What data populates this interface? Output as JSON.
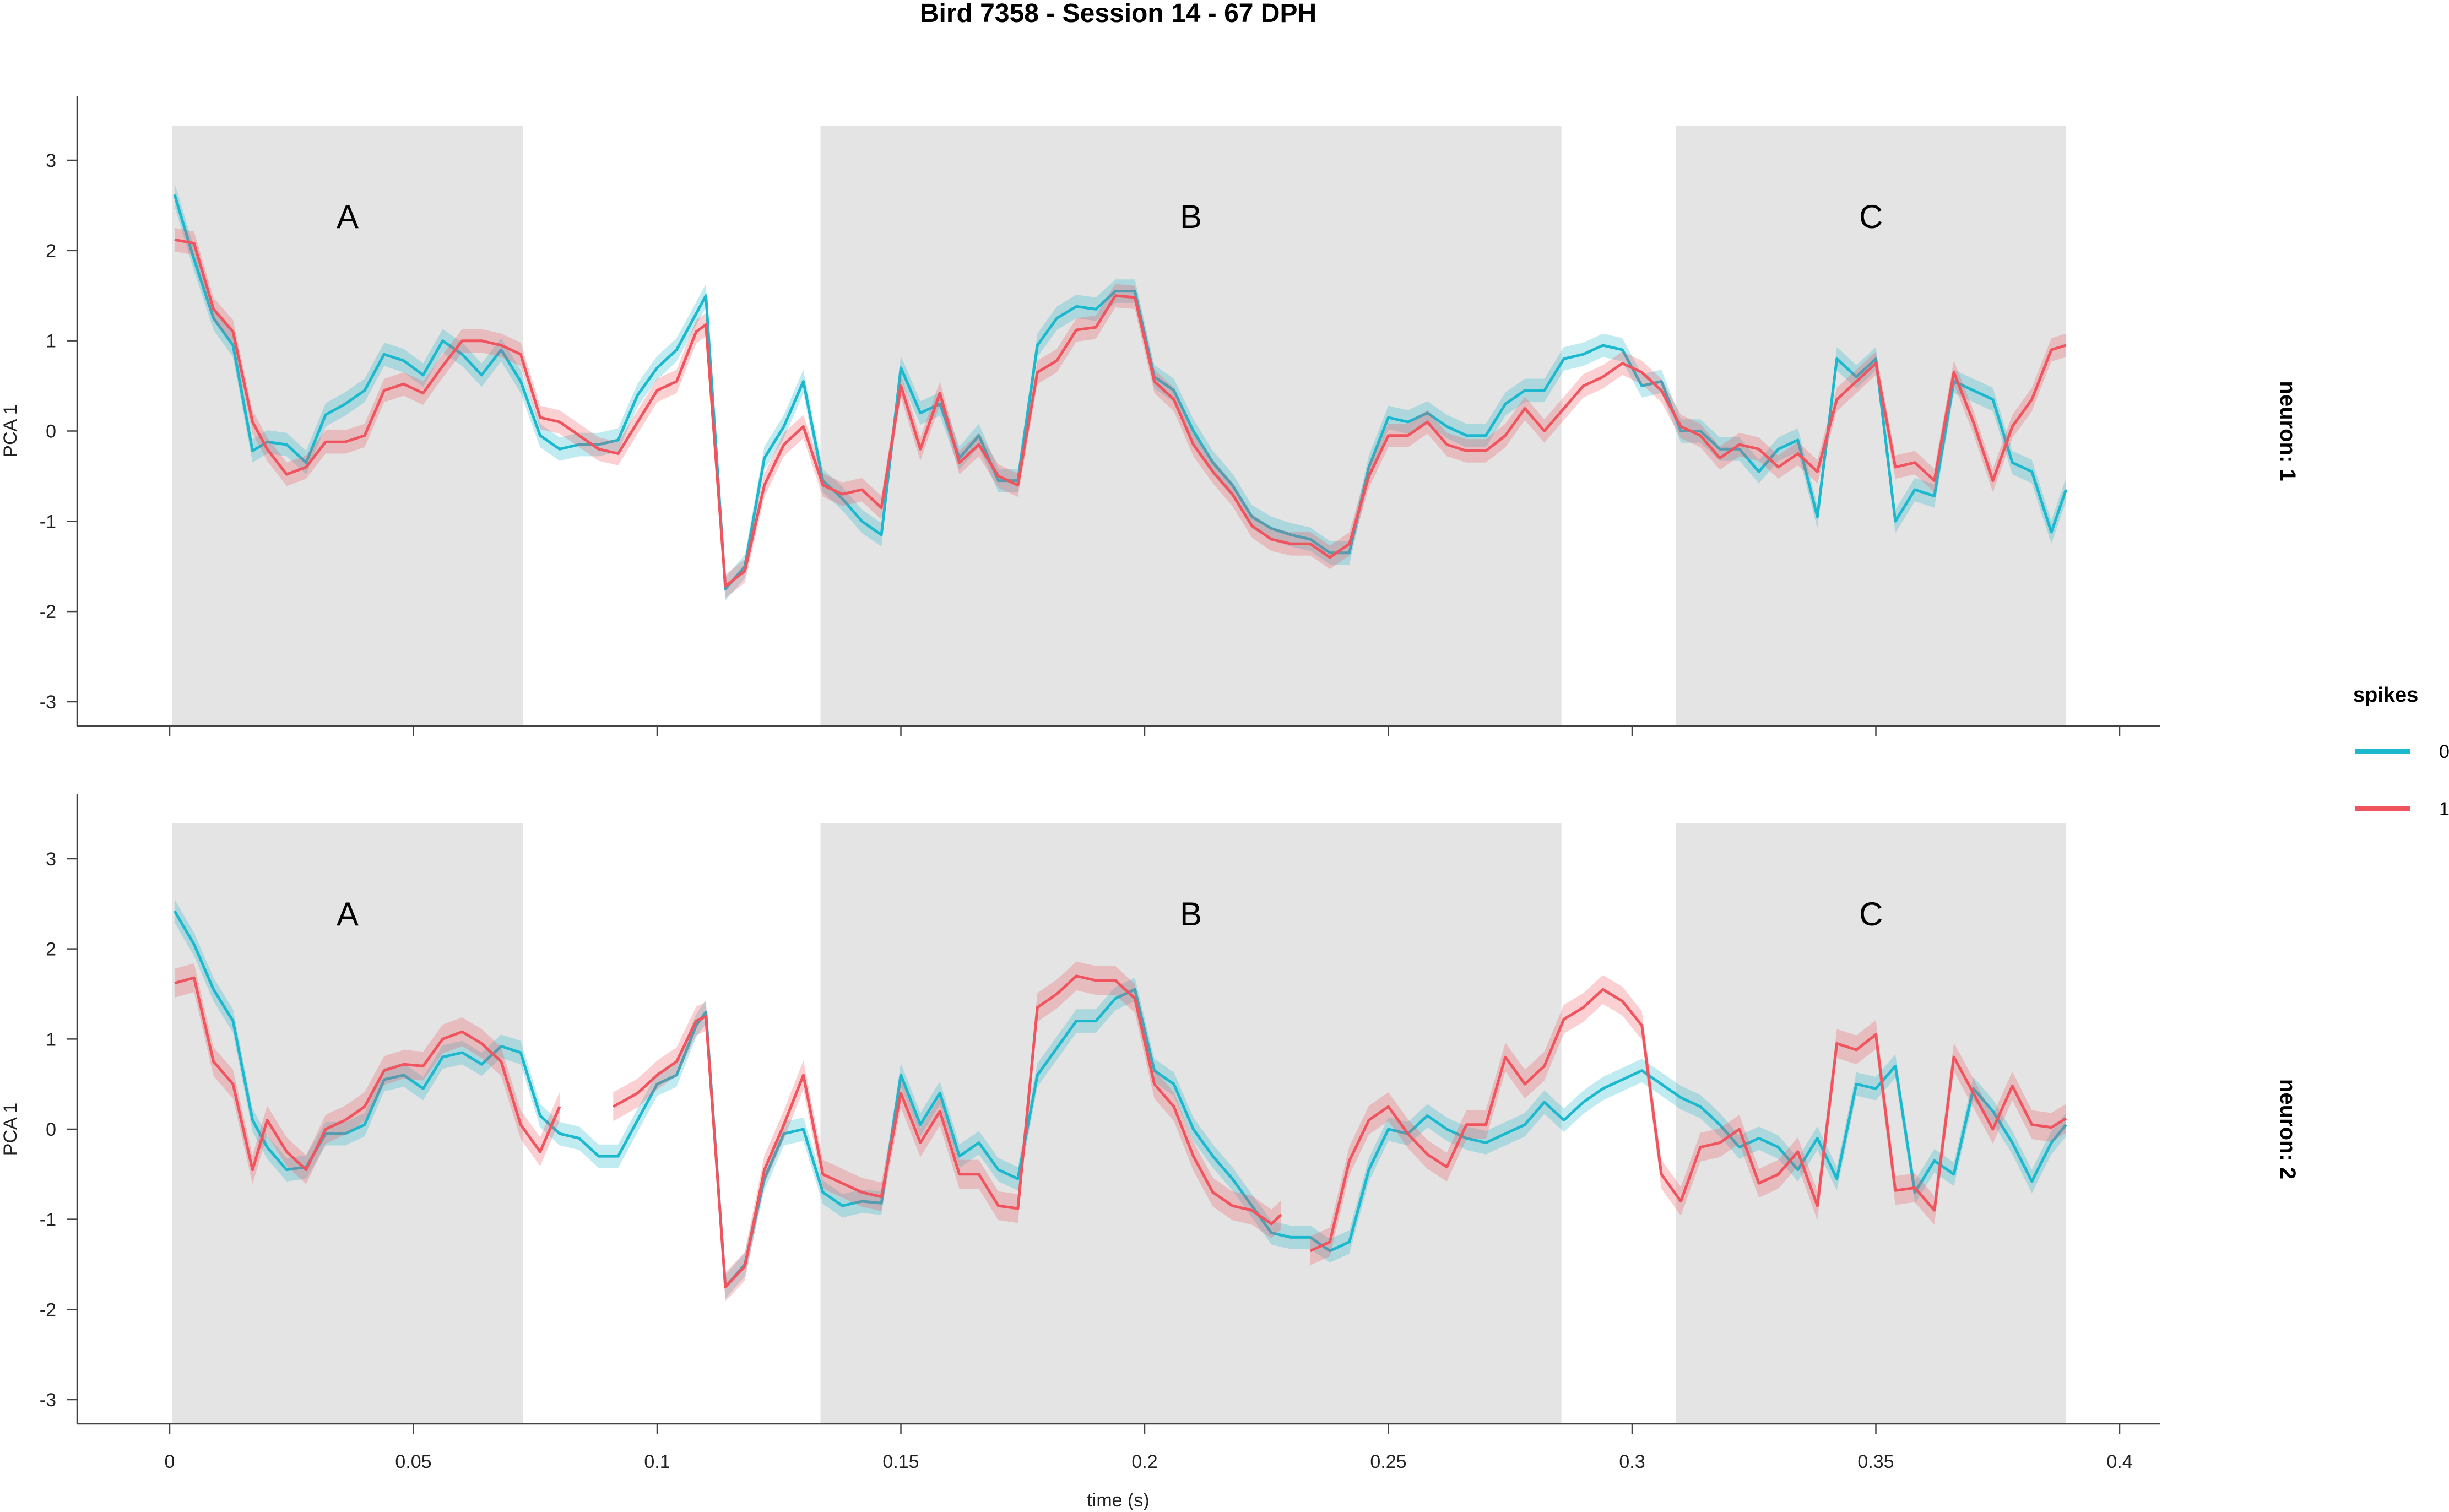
{
  "chart_data": {
    "type": "line",
    "title": "Bird 7358 - Session 14 - 67 DPH",
    "xlabel": "time (s)",
    "ylabel": "PCA 1",
    "xlim": [
      -0.009,
      0.41
    ],
    "ylim": [
      -3.3,
      3.7
    ],
    "x_ticks": [
      0,
      0.05,
      0.1,
      0.15,
      0.2,
      0.25,
      0.3,
      0.35,
      0.4
    ],
    "x_tick_labels": [
      "0",
      "0.05",
      "0.1",
      "0.15",
      "0.2",
      "0.25",
      "0.3",
      "0.35",
      "0.4"
    ],
    "y_ticks": [
      3,
      2,
      1,
      0,
      -1,
      -2,
      -3
    ],
    "y_tick_labels": [
      "3",
      "2",
      "1",
      "0",
      "-1",
      "-2",
      "-3"
    ],
    "regions": [
      {
        "label": "A",
        "start": 0.0005,
        "end": 0.0725
      },
      {
        "label": "B",
        "start": 0.1335,
        "end": 0.2855
      },
      {
        "label": "C",
        "start": 0.309,
        "end": 0.389
      }
    ],
    "legend": {
      "title": "spikes",
      "position": "right",
      "entries": [
        {
          "label": "0",
          "color": "#1CB8CE"
        },
        {
          "label": "1",
          "color": "#F0555F"
        }
      ]
    },
    "facets": [
      {
        "label": "neuron: 1",
        "series": [
          {
            "name": "0",
            "color": "#1CB8CE",
            "band": 0.13,
            "x": [
              0.001,
              0.005,
              0.009,
              0.013,
              0.017,
              0.02,
              0.024,
              0.028,
              0.032,
              0.036,
              0.04,
              0.044,
              0.048,
              0.052,
              0.056,
              0.06,
              0.064,
              0.068,
              0.072,
              0.076,
              0.08,
              0.084,
              0.088,
              0.092,
              0.096,
              0.1,
              0.104,
              0.108,
              0.11,
              0.114,
              0.118,
              0.122,
              0.126,
              0.13,
              0.134,
              0.138,
              0.142,
              0.146,
              0.15,
              0.154,
              0.158,
              0.162,
              0.166,
              0.17,
              0.174,
              0.178,
              0.182,
              0.186,
              0.19,
              0.194,
              0.198,
              0.202,
              0.206,
              0.21,
              0.214,
              0.218,
              0.222,
              0.226,
              0.23,
              0.234,
              0.238,
              0.242,
              0.246,
              0.25,
              0.254,
              0.258,
              0.262,
              0.266,
              0.27,
              0.274,
              0.278,
              0.282,
              0.286,
              0.29,
              0.294,
              0.298,
              0.302,
              0.306,
              0.31,
              0.314,
              0.318,
              0.322,
              0.326,
              0.33,
              0.334,
              0.338,
              0.342,
              0.346,
              0.35,
              0.354,
              0.358,
              0.362,
              0.366,
              0.37,
              0.374,
              0.378,
              0.382,
              0.386,
              0.389
            ],
            "y": [
              2.62,
              1.9,
              1.25,
              0.95,
              -0.22,
              -0.12,
              -0.15,
              -0.35,
              0.18,
              0.3,
              0.45,
              0.85,
              0.78,
              0.62,
              1.0,
              0.85,
              0.62,
              0.9,
              0.55,
              -0.05,
              -0.2,
              -0.15,
              -0.15,
              -0.1,
              0.4,
              0.7,
              0.9,
              1.3,
              1.5,
              -1.75,
              -1.5,
              -0.3,
              0.05,
              0.55,
              -0.55,
              -0.75,
              -1.0,
              -1.15,
              0.7,
              0.2,
              0.3,
              -0.3,
              -0.05,
              -0.55,
              -0.55,
              0.95,
              1.25,
              1.38,
              1.35,
              1.55,
              1.55,
              0.6,
              0.45,
              0.0,
              -0.35,
              -0.6,
              -0.95,
              -1.08,
              -1.15,
              -1.2,
              -1.35,
              -1.35,
              -0.4,
              0.15,
              0.1,
              0.2,
              0.05,
              -0.05,
              -0.05,
              0.3,
              0.45,
              0.45,
              0.8,
              0.85,
              0.95,
              0.9,
              0.5,
              0.55,
              0.0,
              0.0,
              -0.2,
              -0.2,
              -0.45,
              -0.2,
              -0.1,
              -0.95,
              0.8,
              0.6,
              0.8,
              -1.0,
              -0.65,
              -0.72,
              0.55,
              0.45,
              0.35,
              -0.35,
              -0.45,
              -1.12,
              -0.65
            ]
          },
          {
            "name": "1",
            "color": "#F0555F",
            "band": 0.13,
            "x": [
              0.001,
              0.005,
              0.009,
              0.013,
              0.017,
              0.02,
              0.024,
              0.028,
              0.032,
              0.036,
              0.04,
              0.044,
              0.048,
              0.052,
              0.056,
              0.06,
              0.064,
              0.068,
              0.072,
              0.076,
              0.08,
              0.084,
              0.088,
              0.092,
              0.096,
              0.1,
              0.104,
              0.108,
              0.11,
              0.114,
              0.118,
              0.122,
              0.126,
              0.13,
              0.134,
              0.138,
              0.142,
              0.146,
              0.15,
              0.154,
              0.158,
              0.162,
              0.166,
              0.17,
              0.174,
              0.178,
              0.182,
              0.186,
              0.19,
              0.194,
              0.198,
              0.202,
              0.206,
              0.21,
              0.214,
              0.218,
              0.222,
              0.226,
              0.23,
              0.234,
              0.238,
              0.242,
              0.246,
              0.25,
              0.254,
              0.258,
              0.262,
              0.266,
              0.27,
              0.274,
              0.278,
              0.282,
              0.286,
              0.29,
              0.294,
              0.298,
              0.302,
              0.306,
              0.31,
              0.314,
              0.318,
              0.322,
              0.326,
              0.33,
              0.334,
              0.338,
              0.342,
              0.346,
              0.35,
              0.354,
              0.358,
              0.362,
              0.366,
              0.37,
              0.374,
              0.378,
              0.382,
              0.386,
              0.389
            ],
            "y": [
              2.12,
              2.08,
              1.35,
              1.1,
              0.1,
              -0.2,
              -0.48,
              -0.4,
              -0.12,
              -0.12,
              -0.05,
              0.45,
              0.52,
              0.42,
              0.72,
              1.0,
              1.0,
              0.95,
              0.85,
              0.15,
              0.1,
              -0.05,
              -0.2,
              -0.25,
              0.1,
              0.45,
              0.55,
              1.1,
              1.18,
              -1.72,
              -1.55,
              -0.6,
              -0.15,
              0.05,
              -0.6,
              -0.7,
              -0.65,
              -0.85,
              0.5,
              -0.2,
              0.42,
              -0.35,
              -0.15,
              -0.5,
              -0.6,
              0.65,
              0.78,
              1.12,
              1.15,
              1.5,
              1.48,
              0.55,
              0.35,
              -0.15,
              -0.45,
              -0.7,
              -1.05,
              -1.2,
              -1.25,
              -1.25,
              -1.4,
              -1.25,
              -0.5,
              -0.05,
              -0.05,
              0.1,
              -0.15,
              -0.22,
              -0.22,
              -0.05,
              0.25,
              0.0,
              0.25,
              0.5,
              0.6,
              0.75,
              0.65,
              0.45,
              0.05,
              -0.05,
              -0.3,
              -0.15,
              -0.2,
              -0.4,
              -0.25,
              -0.45,
              0.35,
              0.55,
              0.75,
              -0.4,
              -0.35,
              -0.55,
              0.65,
              0.1,
              -0.55,
              0.05,
              0.35,
              0.9,
              0.95
            ]
          }
        ]
      },
      {
        "label": "neuron: 2",
        "series": [
          {
            "name": "0",
            "color": "#1CB8CE",
            "band": 0.13,
            "x": [
              0.001,
              0.005,
              0.009,
              0.013,
              0.017,
              0.02,
              0.024,
              0.028,
              0.032,
              0.036,
              0.04,
              0.044,
              0.048,
              0.052,
              0.056,
              0.06,
              0.064,
              0.068,
              0.072,
              0.076,
              0.08,
              0.084,
              0.088,
              0.092,
              0.096,
              0.1,
              0.104,
              0.108,
              0.11,
              0.114,
              0.118,
              0.122,
              0.126,
              0.13,
              0.134,
              0.138,
              0.142,
              0.146,
              0.15,
              0.154,
              0.158,
              0.162,
              0.166,
              0.17,
              0.174,
              0.178,
              0.182,
              0.186,
              0.19,
              0.194,
              0.198,
              0.202,
              0.206,
              0.21,
              0.214,
              0.218,
              0.222,
              0.226,
              0.23,
              0.234,
              0.238,
              0.242,
              0.246,
              0.25,
              0.254,
              0.258,
              0.262,
              0.266,
              0.27,
              0.274,
              0.278,
              0.282,
              0.286,
              0.29,
              0.294,
              0.298,
              0.302,
              0.306,
              0.31,
              0.314,
              0.318,
              0.322,
              0.326,
              0.33,
              0.334,
              0.338,
              0.342,
              0.346,
              0.35,
              0.354,
              0.358,
              0.362,
              0.366,
              0.37,
              0.374,
              0.378,
              0.382,
              0.386,
              0.389
            ],
            "y": [
              2.42,
              2.05,
              1.55,
              1.2,
              0.1,
              -0.2,
              -0.45,
              -0.42,
              -0.05,
              -0.05,
              0.05,
              0.55,
              0.6,
              0.45,
              0.8,
              0.85,
              0.72,
              0.92,
              0.85,
              0.15,
              -0.05,
              -0.1,
              -0.3,
              -0.3,
              0.1,
              0.5,
              0.6,
              1.15,
              1.3,
              -1.75,
              -1.5,
              -0.55,
              -0.05,
              0.0,
              -0.7,
              -0.85,
              -0.8,
              -0.82,
              0.6,
              0.05,
              0.4,
              -0.3,
              -0.15,
              -0.45,
              -0.55,
              0.6,
              0.9,
              1.2,
              1.2,
              1.45,
              1.55,
              0.65,
              0.5,
              0.0,
              -0.3,
              -0.55,
              -0.85,
              -1.15,
              -1.2,
              -1.2,
              -1.35,
              -1.25,
              -0.45,
              0.0,
              -0.05,
              0.15,
              0.0,
              -0.1,
              -0.15,
              -0.05,
              0.05,
              0.3,
              0.1,
              0.3,
              0.45,
              0.55,
              0.65,
              0.5,
              0.35,
              0.25,
              0.05,
              -0.2,
              -0.1,
              -0.2,
              -0.45,
              -0.1,
              -0.55,
              0.5,
              0.45,
              0.7,
              -0.7,
              -0.35,
              -0.5,
              0.45,
              0.2,
              -0.15,
              -0.58,
              -0.15,
              0.05
            ]
          },
          {
            "name": "1",
            "color": "#F0555F",
            "band": 0.16,
            "x": [
              0.001,
              0.005,
              0.009,
              0.013,
              0.017,
              0.02,
              0.024,
              0.028,
              0.032,
              0.036,
              0.04,
              0.044,
              0.048,
              0.052,
              0.056,
              0.06,
              0.064,
              0.068,
              0.072,
              0.076,
              0.08,
              null,
              0.091,
              0.096,
              0.1,
              0.104,
              0.108,
              0.11,
              0.114,
              0.118,
              0.122,
              0.126,
              0.13,
              0.134,
              0.138,
              0.142,
              0.146,
              0.15,
              0.154,
              0.158,
              0.162,
              0.166,
              0.17,
              0.174,
              0.178,
              0.182,
              0.186,
              0.19,
              0.194,
              0.198,
              0.202,
              0.206,
              0.21,
              0.214,
              0.218,
              0.222,
              0.226,
              0.228,
              null,
              0.234,
              0.238,
              0.242,
              0.246,
              0.25,
              0.254,
              0.258,
              0.262,
              0.266,
              0.27,
              0.274,
              0.278,
              0.282,
              0.286,
              0.29,
              0.294,
              0.298,
              0.302,
              0.306,
              0.31,
              0.314,
              0.318,
              0.322,
              0.326,
              0.33,
              0.334,
              0.338,
              0.342,
              0.346,
              0.35,
              0.354,
              0.358,
              0.362,
              0.366,
              0.37,
              0.374,
              0.378,
              0.382,
              0.386,
              0.389
            ],
            "y": [
              1.62,
              1.68,
              0.75,
              0.5,
              -0.45,
              0.1,
              -0.25,
              -0.45,
              0.0,
              0.1,
              0.25,
              0.65,
              0.72,
              0.7,
              1.0,
              1.08,
              0.95,
              0.75,
              0.05,
              -0.25,
              0.25,
              null,
              0.25,
              0.4,
              0.6,
              0.75,
              1.2,
              1.25,
              -1.75,
              -1.52,
              -0.45,
              0.05,
              0.6,
              -0.5,
              -0.6,
              -0.7,
              -0.75,
              0.4,
              -0.15,
              0.2,
              -0.5,
              -0.5,
              -0.85,
              -0.88,
              1.35,
              1.5,
              1.7,
              1.65,
              1.65,
              1.45,
              0.5,
              0.25,
              -0.3,
              -0.7,
              -0.85,
              -0.9,
              -1.05,
              -0.95,
              null,
              -1.35,
              -1.25,
              -0.35,
              0.1,
              0.25,
              -0.05,
              -0.28,
              -0.42,
              0.05,
              0.05,
              0.8,
              0.5,
              0.7,
              1.22,
              1.35,
              1.55,
              1.42,
              1.15,
              -0.5,
              -0.8,
              -0.2,
              -0.15,
              0.0,
              -0.6,
              -0.5,
              -0.25,
              -0.85,
              0.95,
              0.88,
              1.05,
              -0.68,
              -0.65,
              -0.9,
              0.8,
              0.4,
              0.0,
              0.48,
              0.05,
              0.02,
              0.12
            ]
          }
        ]
      }
    ]
  }
}
